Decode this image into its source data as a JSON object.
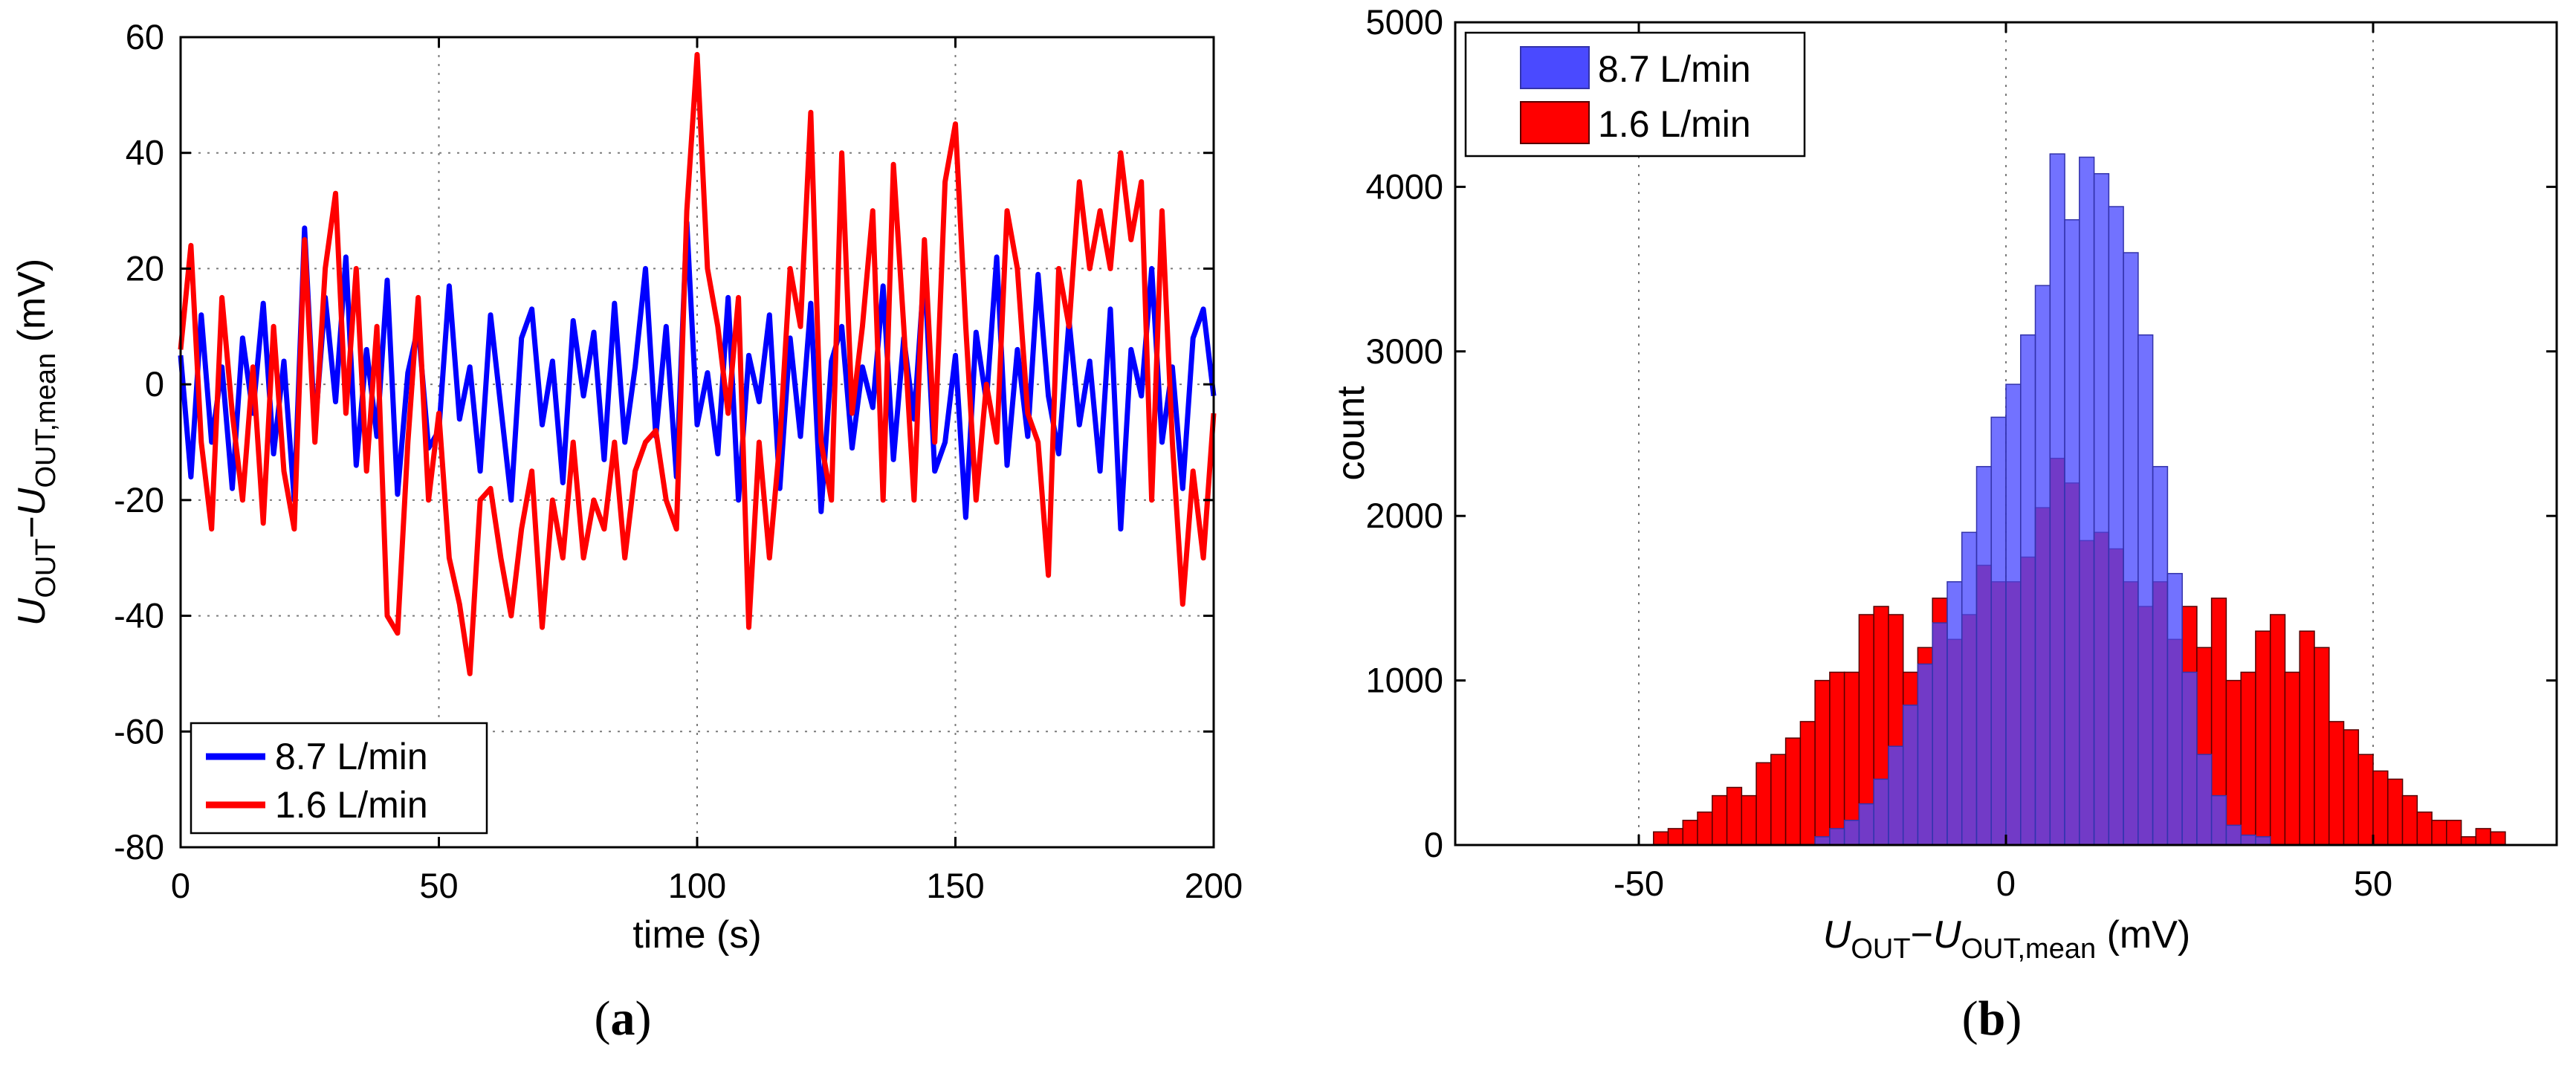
{
  "chart_data": [
    {
      "type": "line",
      "panel_label_open": "(",
      "panel_label_letter": "a",
      "panel_label_close": ")",
      "xlabel": "time (s)",
      "ylabel": {
        "u1": "U",
        "sub1": "OUT",
        "minus": "−",
        "u2": "U",
        "sub2": "OUT,mean",
        "unit": " (mV)"
      },
      "xlim": [
        0,
        200
      ],
      "ylim": [
        -80,
        60
      ],
      "xticks": [
        "0",
        "50",
        "100",
        "150",
        "200"
      ],
      "yticks": [
        "60",
        "40",
        "20",
        "0",
        "-20",
        "-40",
        "-60",
        "-80"
      ],
      "grid": true,
      "legend_position": "bottom-left",
      "series": [
        {
          "name": "8.7 L/min",
          "color": "#0000ff",
          "x": [
            0,
            2,
            4,
            6,
            8,
            10,
            12,
            14,
            16,
            18,
            20,
            22,
            24,
            26,
            28,
            30,
            32,
            34,
            36,
            38,
            40,
            42,
            44,
            46,
            48,
            50,
            52,
            54,
            56,
            58,
            60,
            62,
            64,
            66,
            68,
            70,
            72,
            74,
            76,
            78,
            80,
            82,
            84,
            86,
            88,
            90,
            92,
            94,
            96,
            98,
            100,
            102,
            104,
            106,
            108,
            110,
            112,
            114,
            116,
            118,
            120,
            122,
            124,
            126,
            128,
            130,
            132,
            134,
            136,
            138,
            140,
            142,
            144,
            146,
            148,
            150,
            152,
            154,
            156,
            158,
            160,
            162,
            164,
            166,
            168,
            170,
            172,
            174,
            176,
            178,
            180,
            182,
            184,
            186,
            188,
            190,
            192,
            194,
            196,
            198,
            200
          ],
          "y": [
            5,
            -16,
            12,
            -10,
            3,
            -18,
            8,
            -5,
            14,
            -12,
            4,
            -20,
            27,
            -8,
            15,
            -3,
            22,
            -14,
            6,
            -9,
            18,
            -19,
            2,
            10,
            -11,
            -8,
            17,
            -6,
            3,
            -15,
            12,
            -4,
            -20,
            8,
            13,
            -7,
            4,
            -17,
            11,
            -2,
            9,
            -13,
            14,
            -10,
            3,
            20,
            -9,
            10,
            -16,
            28,
            -7,
            2,
            -12,
            15,
            -20,
            5,
            -3,
            12,
            -18,
            8,
            -9,
            14,
            -22,
            4,
            10,
            -11,
            3,
            -4,
            17,
            -13,
            8,
            -6,
            20,
            -15,
            -10,
            5,
            -23,
            9,
            -3,
            22,
            -14,
            6,
            -9,
            19,
            -2,
            -12,
            11,
            -7,
            4,
            -15,
            13,
            -25,
            6,
            -2,
            20,
            -10,
            3,
            -18,
            8,
            13,
            -2
          ]
        },
        {
          "name": "1.6 L/min",
          "color": "#ff0000",
          "x": [
            0,
            2,
            4,
            6,
            8,
            10,
            12,
            14,
            16,
            18,
            20,
            22,
            24,
            26,
            28,
            30,
            32,
            34,
            36,
            38,
            40,
            42,
            44,
            46,
            48,
            50,
            52,
            54,
            56,
            58,
            60,
            62,
            64,
            66,
            68,
            70,
            72,
            74,
            76,
            78,
            80,
            82,
            84,
            86,
            88,
            90,
            92,
            94,
            96,
            98,
            100,
            102,
            104,
            106,
            108,
            110,
            112,
            114,
            116,
            118,
            120,
            122,
            124,
            126,
            128,
            130,
            132,
            134,
            136,
            138,
            140,
            142,
            144,
            146,
            148,
            150,
            152,
            154,
            156,
            158,
            160,
            162,
            164,
            166,
            168,
            170,
            172,
            174,
            176,
            178,
            180,
            182,
            184,
            186,
            188,
            190,
            192,
            194,
            196,
            198,
            200
          ],
          "y": [
            6,
            24,
            -10,
            -25,
            15,
            -5,
            -20,
            3,
            -24,
            10,
            -15,
            -25,
            25,
            -10,
            20,
            33,
            -5,
            20,
            -15,
            10,
            -40,
            -43,
            -10,
            15,
            -20,
            -5,
            -30,
            -38,
            -50,
            -20,
            -18,
            -30,
            -40,
            -25,
            -15,
            -42,
            -20,
            -30,
            -10,
            -30,
            -20,
            -25,
            -10,
            -30,
            -15,
            -10,
            -8,
            -20,
            -25,
            30,
            57,
            20,
            10,
            -5,
            15,
            -42,
            -10,
            -30,
            -10,
            20,
            10,
            47,
            -10,
            -20,
            40,
            -5,
            10,
            30,
            -20,
            38,
            10,
            -20,
            25,
            -10,
            35,
            45,
            10,
            -20,
            0,
            -10,
            30,
            20,
            -5,
            -10,
            -33,
            20,
            10,
            35,
            20,
            30,
            20,
            40,
            25,
            35,
            -20,
            30,
            -10,
            -38,
            -15,
            -30,
            -5
          ]
        }
      ]
    },
    {
      "type": "histogram",
      "panel_label_open": "(",
      "panel_label_letter": "b",
      "panel_label_close": ")",
      "xlabel": {
        "u1": "U",
        "sub1": "OUT",
        "minus": "−",
        "u2": "U",
        "sub2": "OUT,mean",
        "unit": " (mV)"
      },
      "ylabel": "count",
      "xlim": [
        -75,
        75
      ],
      "ylim": [
        0,
        5000
      ],
      "xticks": [
        "-50",
        "0",
        "50"
      ],
      "yticks": [
        "5000",
        "4000",
        "3000",
        "2000",
        "1000",
        "0"
      ],
      "grid": true,
      "legend_position": "top-left",
      "bin_width": 2,
      "series": [
        {
          "name": "8.7 L/min",
          "color": "#4a4aff",
          "edge": "#3333aa",
          "bin_start": -26,
          "counts": [
            50,
            100,
            150,
            250,
            400,
            600,
            850,
            1100,
            1350,
            1600,
            1900,
            2300,
            2600,
            2800,
            3100,
            3400,
            4200,
            3800,
            4180,
            4080,
            3880,
            3600,
            3100,
            2300,
            1650,
            1050,
            550,
            300,
            120,
            60,
            50
          ]
        },
        {
          "name": "1.6 L/min",
          "color": "#ff0000",
          "edge": "#550000",
          "bin_start": -48,
          "counts": [
            80,
            100,
            150,
            200,
            300,
            350,
            300,
            500,
            550,
            650,
            750,
            1000,
            1050,
            1050,
            1400,
            1450,
            1400,
            1050,
            1200,
            1500,
            1250,
            1400,
            1700,
            1600,
            1600,
            1750,
            2050,
            2350,
            2200,
            1850,
            1900,
            1800,
            1600,
            1450,
            1600,
            1250,
            1450,
            1200,
            1500,
            1000,
            1050,
            1300,
            1400,
            1050,
            1300,
            1200,
            750,
            700,
            550,
            450,
            400,
            300,
            200,
            150,
            150,
            50,
            100,
            80
          ]
        }
      ]
    }
  ]
}
